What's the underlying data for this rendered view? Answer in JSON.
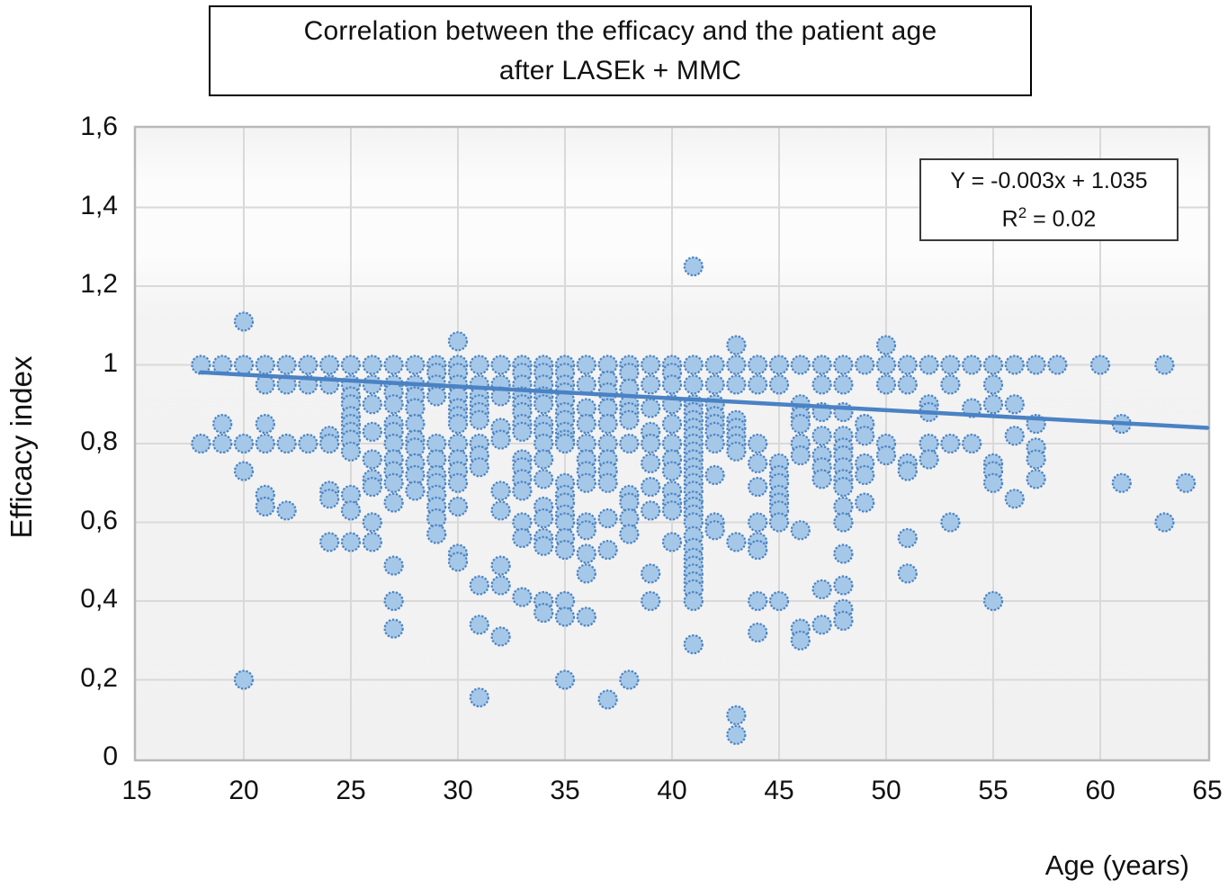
{
  "title": {
    "line1": "Correlation between the efficacy and the patient age",
    "line2": "after LASEk + MMC"
  },
  "annotation": {
    "equation": "Y = -0.003x + 1.035",
    "r2_base": "R",
    "r2_sup": "2",
    "r2_tail": " = 0.02"
  },
  "axes": {
    "x_label": "Age (years)",
    "y_label": "Efficacy index",
    "x_tick_values": [
      15,
      20,
      25,
      30,
      35,
      40,
      45,
      50,
      55,
      60,
      65
    ],
    "x_tick_labels": [
      "15",
      "20",
      "25",
      "30",
      "35",
      "40",
      "45",
      "50",
      "55",
      "60",
      "65"
    ],
    "y_tick_values": [
      0,
      0.2,
      0.4,
      0.6,
      0.8,
      1.0,
      1.2,
      1.4,
      1.6
    ],
    "y_tick_labels": [
      "0",
      "0,2",
      "0,4",
      "0,6",
      "0,8",
      "1",
      "1,2",
      "1,4",
      "1,6"
    ]
  },
  "chart_data": {
    "type": "scatter",
    "title": "Correlation between the efficacy and the patient age after LASEk + MMC",
    "xlabel": "Age (years)",
    "ylabel": "Efficacy index",
    "xlim": [
      15,
      65
    ],
    "ylim": [
      0,
      1.6
    ],
    "x_grid_step": 5,
    "y_grid_step": 0.2,
    "grid": true,
    "legend": "none",
    "points_by_age": {
      "18": [
        1.0,
        0.8
      ],
      "19": [
        1.0,
        0.85,
        0.8
      ],
      "20": [
        1.11,
        1.0,
        0.8,
        0.73,
        0.2
      ],
      "21": [
        1.0,
        0.95,
        0.85,
        0.8,
        0.67,
        0.64
      ],
      "22": [
        1.0,
        0.95,
        0.8,
        0.63
      ],
      "23": [
        1.0,
        0.95,
        0.8
      ],
      "24": [
        1.0,
        0.95,
        0.82,
        0.8,
        0.68,
        0.66,
        0.55
      ],
      "25": [
        1.0,
        0.95,
        0.92,
        0.9,
        0.87,
        0.85,
        0.83,
        0.81,
        0.78,
        0.67,
        0.63,
        0.55
      ],
      "26": [
        1.0,
        0.95,
        0.9,
        0.83,
        0.76,
        0.71,
        0.69,
        0.6,
        0.55
      ],
      "27": [
        1.0,
        0.95,
        0.93,
        0.9,
        0.85,
        0.83,
        0.8,
        0.76,
        0.73,
        0.7,
        0.65,
        0.49,
        0.4,
        0.33
      ],
      "28": [
        1.0,
        0.95,
        0.92,
        0.89,
        0.85,
        0.81,
        0.79,
        0.75,
        0.72,
        0.68
      ],
      "29": [
        1.0,
        0.98,
        0.95,
        0.92,
        0.8,
        0.76,
        0.72,
        0.7,
        0.67,
        0.64,
        0.61,
        0.57
      ],
      "30": [
        1.06,
        1.0,
        0.98,
        0.95,
        0.92,
        0.89,
        0.87,
        0.85,
        0.8,
        0.76,
        0.73,
        0.7,
        0.64,
        0.52,
        0.5
      ],
      "31": [
        1.0,
        0.95,
        0.92,
        0.9,
        0.88,
        0.86,
        0.8,
        0.77,
        0.74,
        0.44,
        0.34,
        0.155
      ],
      "32": [
        1.0,
        0.95,
        0.92,
        0.84,
        0.81,
        0.68,
        0.63,
        0.49,
        0.44,
        0.31
      ],
      "33": [
        1.0,
        0.98,
        0.95,
        0.92,
        0.9,
        0.88,
        0.85,
        0.83,
        0.76,
        0.74,
        0.71,
        0.68,
        0.6,
        0.56,
        0.41
      ],
      "34": [
        1.0,
        0.98,
        0.95,
        0.92,
        0.9,
        0.85,
        0.83,
        0.8,
        0.76,
        0.71,
        0.64,
        0.61,
        0.56,
        0.54,
        0.4,
        0.37
      ],
      "35": [
        1.0,
        0.98,
        0.95,
        0.93,
        0.91,
        0.88,
        0.86,
        0.83,
        0.81,
        0.8,
        0.7,
        0.67,
        0.65,
        0.62,
        0.6,
        0.56,
        0.53,
        0.4,
        0.36,
        0.2
      ],
      "36": [
        1.0,
        0.95,
        0.89,
        0.85,
        0.8,
        0.76,
        0.73,
        0.7,
        0.6,
        0.58,
        0.52,
        0.47,
        0.36
      ],
      "37": [
        1.0,
        0.96,
        0.93,
        0.89,
        0.85,
        0.8,
        0.76,
        0.73,
        0.7,
        0.61,
        0.53,
        0.15
      ],
      "38": [
        1.0,
        0.98,
        0.94,
        0.9,
        0.88,
        0.86,
        0.8,
        0.67,
        0.65,
        0.61,
        0.57,
        0.2
      ],
      "39": [
        1.0,
        0.95,
        0.89,
        0.83,
        0.8,
        0.75,
        0.69,
        0.63,
        0.47,
        0.4
      ],
      "40": [
        1.0,
        0.98,
        0.95,
        0.9,
        0.85,
        0.8,
        0.76,
        0.73,
        0.68,
        0.65,
        0.63,
        0.55
      ],
      "41": [
        1.25,
        1.0,
        0.95,
        0.9,
        0.88,
        0.86,
        0.84,
        0.82,
        0.8,
        0.78,
        0.76,
        0.74,
        0.72,
        0.7,
        0.68,
        0.655,
        0.64,
        0.62,
        0.6,
        0.565,
        0.535,
        0.51,
        0.49,
        0.47,
        0.45,
        0.43,
        0.4,
        0.29
      ],
      "42": [
        1.0,
        0.95,
        0.9,
        0.87,
        0.85,
        0.83,
        0.8,
        0.72,
        0.6,
        0.58
      ],
      "43": [
        1.05,
        1.0,
        0.95,
        0.86,
        0.84,
        0.82,
        0.8,
        0.78,
        0.55,
        0.11,
        0.06
      ],
      "44": [
        1.0,
        0.95,
        0.8,
        0.75,
        0.69,
        0.6,
        0.55,
        0.53,
        0.4,
        0.32
      ],
      "45": [
        1.0,
        0.95,
        0.75,
        0.72,
        0.7,
        0.67,
        0.65,
        0.63,
        0.6,
        0.4
      ],
      "46": [
        1.0,
        0.9,
        0.87,
        0.85,
        0.8,
        0.77,
        0.58,
        0.33,
        0.3
      ],
      "47": [
        1.0,
        0.95,
        0.88,
        0.82,
        0.77,
        0.74,
        0.71,
        0.43,
        0.34
      ],
      "48": [
        1.0,
        0.95,
        0.88,
        0.82,
        0.79,
        0.77,
        0.74,
        0.71,
        0.69,
        0.64,
        0.6,
        0.52,
        0.44,
        0.38,
        0.35
      ],
      "49": [
        1.0,
        0.85,
        0.82,
        0.75,
        0.72,
        0.65
      ],
      "50": [
        1.05,
        1.0,
        0.95,
        0.8,
        0.77
      ],
      "51": [
        1.0,
        0.95,
        0.75,
        0.73,
        0.56,
        0.47
      ],
      "52": [
        1.0,
        0.9,
        0.88,
        0.8,
        0.76
      ],
      "53": [
        1.0,
        0.95,
        0.8,
        0.6
      ],
      "54": [
        1.0,
        0.89,
        0.8
      ],
      "55": [
        1.0,
        0.95,
        0.9,
        0.75,
        0.73,
        0.7,
        0.4
      ],
      "56": [
        1.0,
        0.9,
        0.82,
        0.66
      ],
      "57": [
        1.0,
        0.85,
        0.79,
        0.76,
        0.71
      ],
      "58": [
        1.0
      ],
      "60": [
        1.0
      ],
      "61": [
        0.85,
        0.7
      ],
      "63": [
        1.0,
        0.6
      ],
      "64": [
        0.7
      ]
    },
    "trendline": {
      "equation": "Y = -0.003x + 1.035",
      "slope": -0.003,
      "intercept": 1.035,
      "r2": 0.02,
      "x_start": 18,
      "x_end": 65
    },
    "style": {
      "marker_fill": "#a6c8e8",
      "marker_stroke": "#4c84c4",
      "trend_color": "#4a82c4",
      "grid_color": "#d9d9d9",
      "frame_color": "#b9b9b9",
      "plot_bg_top": "#f3f3f3",
      "plot_bg_band": "#fcfcfc",
      "plot_bg_bottom": "#f1f1f2"
    }
  }
}
